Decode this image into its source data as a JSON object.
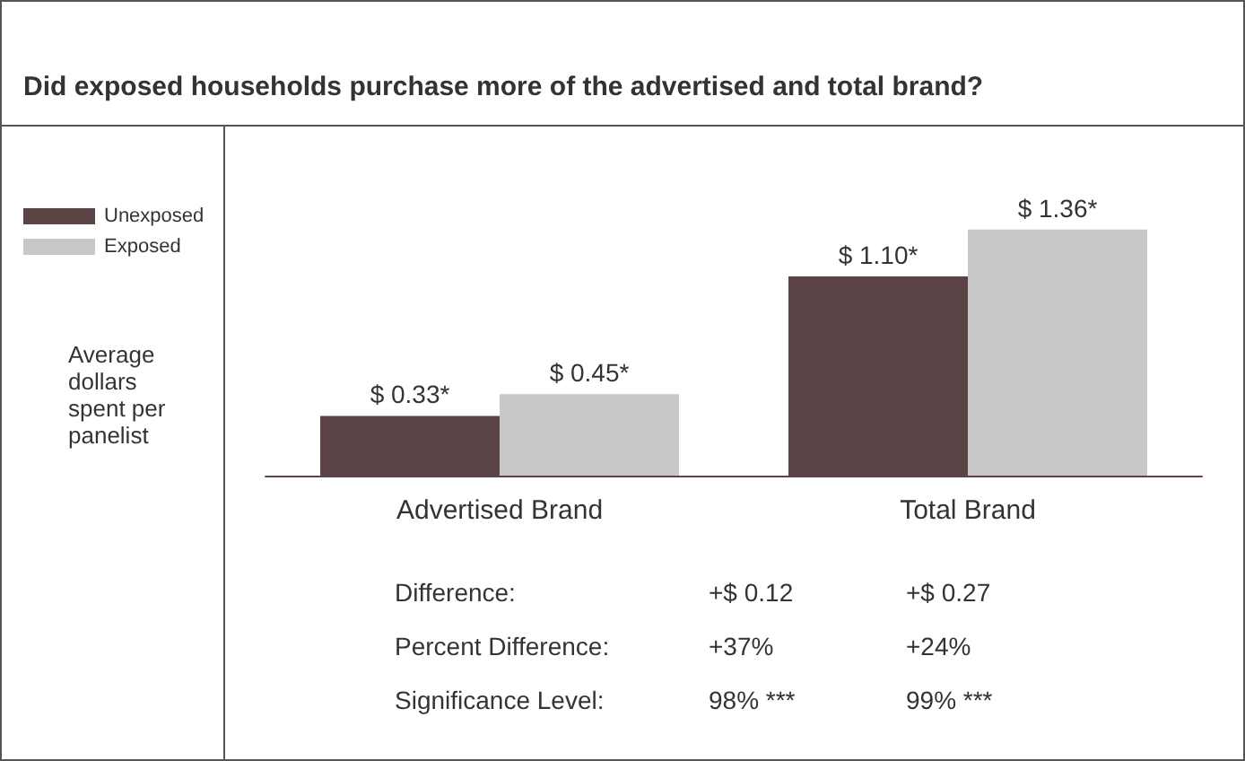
{
  "chart_data": {
    "type": "bar",
    "title": "Did exposed households purchase more of the advertised and total brand?",
    "ylabel": "Average dollars spent per panelist",
    "categories": [
      "Advertised Brand",
      "Total Brand"
    ],
    "series": [
      {
        "name": "Unexposed",
        "color": "#5c4446",
        "values": [
          0.33,
          1.1
        ],
        "value_labels": [
          "$ 0.33*",
          "$ 1.10*"
        ]
      },
      {
        "name": "Exposed",
        "color": "#c8c8c8",
        "values": [
          0.45,
          1.36
        ],
        "value_labels": [
          "$ 0.45*",
          "$ 1.36*"
        ]
      }
    ],
    "annotations": [
      "Difference:",
      "+$ 0.12",
      "+$ 0.27",
      "Percent Difference:",
      "+37%",
      "+24%",
      "Significance Level:",
      "98% ***",
      "99% ***"
    ],
    "legend": "top left"
  }
}
